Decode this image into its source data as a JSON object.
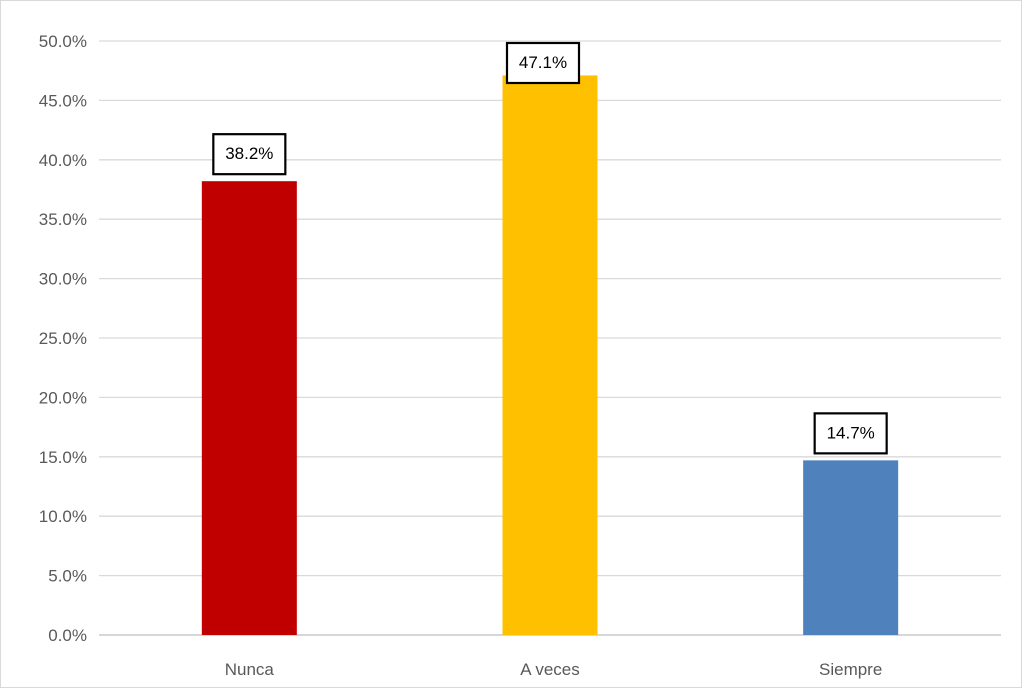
{
  "chart_data": {
    "type": "bar",
    "title": "",
    "xlabel": "",
    "ylabel": "",
    "categories": [
      "Nunca",
      "A veces",
      "Siempre"
    ],
    "values": [
      38.2,
      47.1,
      14.7
    ],
    "data_labels": [
      "38.2%",
      "47.1%",
      "14.7%"
    ],
    "colors": [
      "#C00000",
      "#FFC000",
      "#4F81BD"
    ],
    "ylim": [
      0,
      50
    ],
    "yticks": [
      0,
      5,
      10,
      15,
      20,
      25,
      30,
      35,
      40,
      45,
      50
    ],
    "ytick_labels": [
      "0.0%",
      "5.0%",
      "10.0%",
      "15.0%",
      "20.0%",
      "25.0%",
      "30.0%",
      "35.0%",
      "40.0%",
      "45.0%",
      "50.0%"
    ],
    "grid": true,
    "legend": "none",
    "data_label_style": "boxed"
  }
}
